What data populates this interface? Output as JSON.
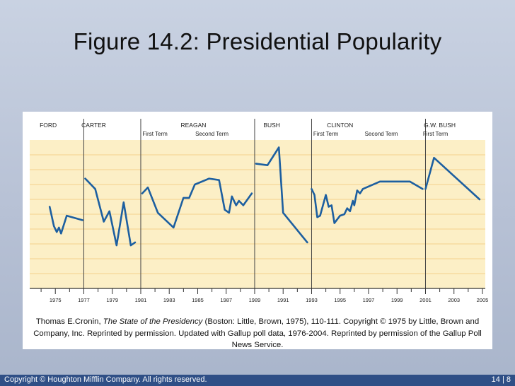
{
  "slide": {
    "title": "Figure 14.2: Presidential Popularity",
    "caption_before": "Thomas E.Cronin, ",
    "caption_cite": "The State of the Presidency",
    "caption_after": " (Boston: Little, Brown, 1975), 110-111. Copyright © 1975 by Little, Brown and Company, Inc. Reprinted by permission. Updated with Gallup poll data, 1976-2004. Reprinted by permission of the Gallup Poll News Service.",
    "footer_left": "Copyright © Houghton Mifflin Company. All rights reserved.",
    "footer_right": "14 | 8"
  },
  "colors": {
    "plot_background": "#fcefc6",
    "gridline": "#f4d28c",
    "line": "#1d5fa0",
    "axis": "#333333",
    "footer": "#2f4f86"
  },
  "chart_data": {
    "type": "line",
    "title": "",
    "xlabel": "",
    "ylabel": "",
    "xlim": [
      1973.2,
      2005.2
    ],
    "ylim": [
      0,
      100
    ],
    "grid": true,
    "x_ticks": [
      "1975",
      "1977",
      "1979",
      "1981",
      "1983",
      "1985",
      "1987",
      "1989",
      "1991",
      "1993",
      "1995",
      "1997",
      "1999",
      "2001",
      "2003",
      "2005"
    ],
    "presidents": [
      {
        "label": "FORD",
        "x": 1974.5
      },
      {
        "label": "CARTER",
        "x": 1977.7
      },
      {
        "label": "REAGAN",
        "x": 1984.7
      },
      {
        "label": "BUSH",
        "x": 1990.2
      },
      {
        "label": "CLINTON",
        "x": 1995.0
      },
      {
        "label": "G.W. BUSH",
        "x": 2002.0
      }
    ],
    "terms": [
      {
        "label": "First Term",
        "x": 1982.0
      },
      {
        "label": "Second Term",
        "x": 1986.0
      },
      {
        "label": "First Term",
        "x": 1994.0
      },
      {
        "label": "Second Term",
        "x": 1997.9
      },
      {
        "label": "First Term",
        "x": 2001.7
      }
    ],
    "administration_dividers": [
      1977.0,
      1981.0,
      1989.0,
      1993.0,
      2001.0
    ],
    "series": [
      {
        "points": [
          [
            1974.6,
            55
          ],
          [
            1974.9,
            42
          ],
          [
            1975.1,
            38
          ],
          [
            1975.25,
            41
          ],
          [
            1975.4,
            37
          ],
          [
            1975.8,
            49
          ],
          [
            1976.9,
            46
          ]
        ]
      },
      {
        "points": [
          [
            1977.1,
            74
          ],
          [
            1977.8,
            67
          ],
          [
            1978.4,
            45
          ],
          [
            1978.8,
            52
          ],
          [
            1979.3,
            29
          ],
          [
            1979.8,
            58
          ],
          [
            1980.3,
            29
          ],
          [
            1980.6,
            31
          ]
        ]
      },
      {
        "points": [
          [
            1981.1,
            64
          ],
          [
            1981.5,
            68
          ],
          [
            1982.2,
            51
          ],
          [
            1983.3,
            41
          ],
          [
            1984.0,
            61
          ],
          [
            1984.4,
            61
          ],
          [
            1984.8,
            70
          ],
          [
            1985.8,
            74
          ],
          [
            1986.5,
            73
          ],
          [
            1986.9,
            53
          ],
          [
            1987.2,
            51
          ],
          [
            1987.4,
            62
          ],
          [
            1987.7,
            56
          ],
          [
            1987.9,
            59
          ],
          [
            1988.2,
            56
          ],
          [
            1988.8,
            64
          ]
        ]
      },
      {
        "points": [
          [
            1989.1,
            84
          ],
          [
            1989.9,
            83
          ],
          [
            1990.7,
            95
          ],
          [
            1991.0,
            51
          ],
          [
            1992.7,
            31
          ]
        ]
      },
      {
        "points": [
          [
            1993.0,
            67
          ],
          [
            1993.2,
            63
          ],
          [
            1993.4,
            48
          ],
          [
            1993.6,
            49
          ],
          [
            1994.0,
            63
          ],
          [
            1994.2,
            55
          ],
          [
            1994.4,
            56
          ],
          [
            1994.6,
            44
          ],
          [
            1995.0,
            49
          ],
          [
            1995.3,
            50
          ],
          [
            1995.5,
            54
          ],
          [
            1995.7,
            52
          ],
          [
            1995.9,
            59
          ],
          [
            1996.0,
            56
          ],
          [
            1996.2,
            66
          ],
          [
            1996.4,
            64
          ],
          [
            1996.6,
            67
          ],
          [
            1997.8,
            72
          ],
          [
            1999.9,
            72
          ],
          [
            2000.8,
            67
          ]
        ]
      },
      {
        "points": [
          [
            2001.0,
            67
          ],
          [
            2001.6,
            88
          ],
          [
            2004.8,
            60
          ]
        ]
      }
    ]
  }
}
